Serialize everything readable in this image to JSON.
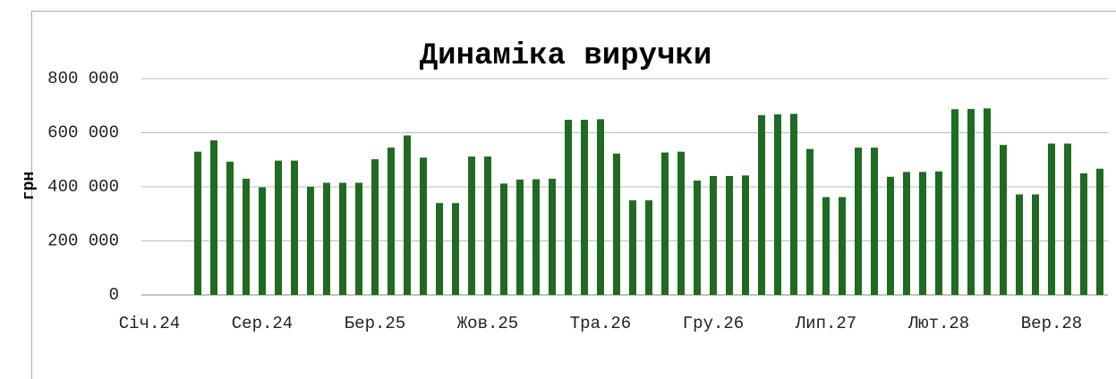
{
  "chart_data": {
    "type": "bar",
    "title": "Динаміка виручки",
    "y_label": "грн",
    "categories": [
      "Січ.24",
      null,
      null,
      null,
      null,
      null,
      null,
      "Сер.24",
      null,
      null,
      null,
      null,
      null,
      null,
      "Бер.25",
      null,
      null,
      null,
      null,
      null,
      null,
      "Жов.25",
      null,
      null,
      null,
      null,
      null,
      null,
      "Тра.26",
      null,
      null,
      null,
      null,
      null,
      null,
      "Гру.26",
      null,
      null,
      null,
      null,
      null,
      null,
      "Лип.27",
      null,
      null,
      null,
      null,
      null,
      null,
      "Лют.28",
      null,
      null,
      null,
      null,
      null,
      null,
      "Вер.28",
      null,
      null,
      null
    ],
    "values": [
      null,
      null,
      null,
      530000,
      572000,
      493000,
      430000,
      398000,
      497000,
      497000,
      400000,
      415000,
      415000,
      415000,
      502000,
      545000,
      590000,
      508000,
      340000,
      340000,
      512000,
      512000,
      412000,
      427000,
      428000,
      430000,
      648000,
      648000,
      650000,
      523000,
      350000,
      350000,
      527000,
      530000,
      423000,
      440000,
      440000,
      442000,
      665000,
      668000,
      670000,
      540000,
      362000,
      362000,
      545000,
      545000,
      437000,
      455000,
      455000,
      457000,
      687000,
      688000,
      690000,
      555000,
      372000,
      372000,
      560000,
      560000,
      450000,
      467000
    ],
    "color": "#1f6b22",
    "ylim": [
      0,
      800000
    ],
    "yticks": [
      0,
      {
        "value": 200000,
        "label": "200 000"
      },
      {
        "value": 400000,
        "label": "400 000"
      },
      {
        "value": 600000,
        "label": "600 000"
      },
      {
        "value": 800000,
        "label": "800 000"
      }
    ],
    "grid": true
  }
}
